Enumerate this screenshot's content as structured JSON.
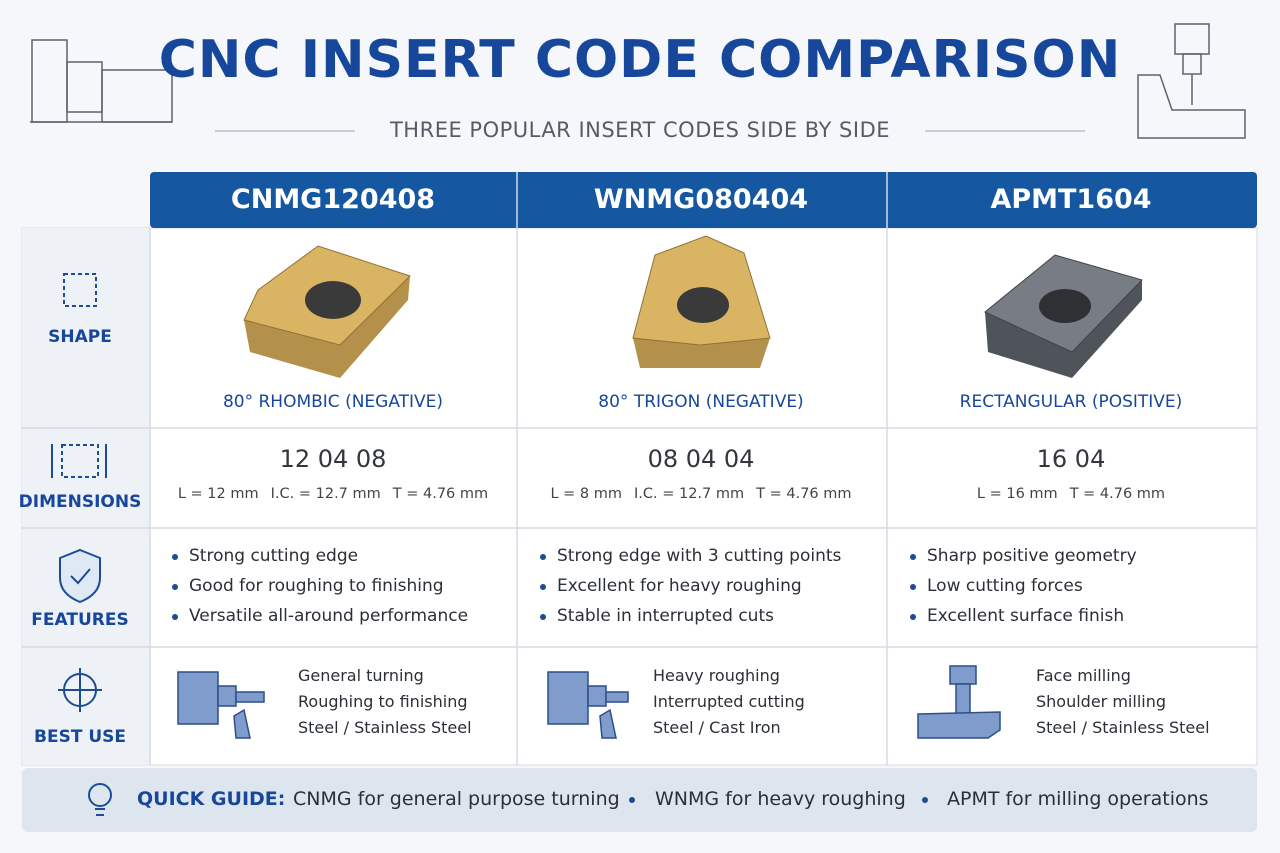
{
  "header": {
    "title": "CNC INSERT CODE COMPARISON",
    "subtitle": "THREE POPULAR INSERT CODES SIDE BY SIDE"
  },
  "row_labels": [
    "SHAPE",
    "DIMENSIONS",
    "FEATURES",
    "BEST USE"
  ],
  "columns": [
    {
      "code": "CNMG120408",
      "shape": "80° RHOMBIC (NEGATIVE)",
      "size_code": "12 04 08",
      "dimensions": [
        "L = 12 mm",
        "I.C. = 12.7 mm",
        "T = 4.76 mm"
      ],
      "features": [
        "Strong cutting edge",
        "Good for roughing to finishing",
        "Versatile all-around performance"
      ],
      "best_use": [
        "General turning",
        "Roughing to finishing",
        "Steel / Stainless Steel"
      ]
    },
    {
      "code": "WNMG080404",
      "shape": "80° TRIGON (NEGATIVE)",
      "size_code": "08 04 04",
      "dimensions": [
        "L = 8 mm",
        "I.C. = 12.7 mm",
        "T = 4.76 mm"
      ],
      "features": [
        "Strong edge with 3 cutting points",
        "Excellent for heavy roughing",
        "Stable in interrupted cuts"
      ],
      "best_use": [
        "Heavy roughing",
        "Interrupted cutting",
        "Steel / Cast Iron"
      ]
    },
    {
      "code": "APMT1604",
      "shape": "RECTANGULAR (POSITIVE)",
      "size_code": "16 04",
      "dimensions": [
        "L = 16 mm",
        "T = 4.76 mm"
      ],
      "features": [
        "Sharp positive geometry",
        "Low cutting forces",
        "Excellent surface finish"
      ],
      "best_use": [
        "Face milling",
        "Shoulder milling",
        "Steel / Stainless Steel"
      ]
    }
  ],
  "quick_guide": {
    "label": "QUICK GUIDE:",
    "items": [
      "CNMG for general purpose turning",
      "WNMG for heavy roughing",
      "APMT for milling operations"
    ]
  }
}
